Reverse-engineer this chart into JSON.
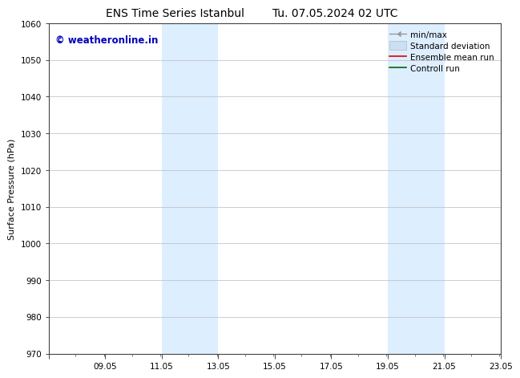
{
  "title_left": "ENS Time Series Istanbul",
  "title_right": "Tu. 07.05.2024 02 UTC",
  "ylabel": "Surface Pressure (hPa)",
  "ylim": [
    970,
    1060
  ],
  "yticks": [
    970,
    980,
    990,
    1000,
    1010,
    1020,
    1030,
    1040,
    1050,
    1060
  ],
  "xlim": [
    7.05,
    23.05
  ],
  "xticks": [
    7.05,
    9.05,
    11.05,
    13.05,
    15.05,
    17.05,
    19.05,
    21.05,
    23.05
  ],
  "xticklabels": [
    "",
    "09.05",
    "11.05",
    "13.05",
    "15.05",
    "17.05",
    "19.05",
    "21.05",
    "23.05"
  ],
  "watermark": "© weatheronline.in",
  "watermark_color": "#0000bb",
  "bg_color": "#ffffff",
  "plot_bg_color": "#ffffff",
  "shaded_regions": [
    {
      "xmin": 11.05,
      "xmax": 12.05
    },
    {
      "xmin": 12.05,
      "xmax": 13.05
    },
    {
      "xmin": 19.05,
      "xmax": 20.05
    },
    {
      "xmin": 20.05,
      "xmax": 21.05
    }
  ],
  "shaded_color": "#ddeeff",
  "legend_entries": [
    {
      "label": "min/max",
      "color": "#aaaaaa",
      "linewidth": 1.0
    },
    {
      "label": "Standard deviation",
      "color": "#cce0f0",
      "linewidth": 6
    },
    {
      "label": "Ensemble mean run",
      "color": "#dd0000",
      "linewidth": 1.2
    },
    {
      "label": "Controll run",
      "color": "#006600",
      "linewidth": 1.2
    }
  ],
  "grid_color": "#bbbbbb",
  "tick_color": "#000000",
  "spine_color": "#444444",
  "title_fontsize": 10,
  "axis_label_fontsize": 8,
  "tick_fontsize": 7.5,
  "legend_fontsize": 7.5,
  "watermark_fontsize": 8.5
}
